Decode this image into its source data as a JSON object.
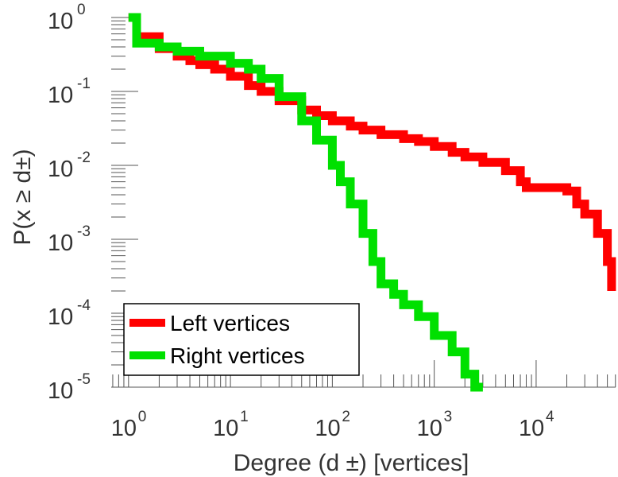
{
  "chart_data": {
    "type": "line",
    "title": "",
    "xlabel": "Degree (d ±) [vertices]",
    "ylabel": "P(x ≥ d±)",
    "x_scale": "log",
    "y_scale": "log",
    "xlim_exp": [
      -0.17,
      4.78
    ],
    "ylim_exp": [
      -5,
      0
    ],
    "grid": false,
    "legend_position": "bottom-left",
    "x_ticks": [
      {
        "base": "10",
        "exp": "0"
      },
      {
        "base": "10",
        "exp": "1"
      },
      {
        "base": "10",
        "exp": "2"
      },
      {
        "base": "10",
        "exp": "3"
      },
      {
        "base": "10",
        "exp": "4"
      }
    ],
    "y_ticks": [
      {
        "base": "10",
        "exp": "0"
      },
      {
        "base": "10",
        "exp": "-1"
      },
      {
        "base": "10",
        "exp": "-2"
      },
      {
        "base": "10",
        "exp": "-3"
      },
      {
        "base": "10",
        "exp": "-4"
      },
      {
        "base": "10",
        "exp": "-5"
      }
    ],
    "series": [
      {
        "name": "Left vertices",
        "color": "#ff0000",
        "x": [
          1,
          1.2,
          2,
          3,
          4,
          5,
          7,
          10,
          15,
          20,
          30,
          50,
          70,
          100,
          150,
          200,
          300,
          500,
          700,
          1000,
          1500,
          2000,
          3000,
          5000,
          7000,
          8000,
          10000,
          15000,
          20000,
          25000,
          30000,
          40000,
          50000,
          55000
        ],
        "y": [
          1,
          0.55,
          0.38,
          0.3,
          0.26,
          0.23,
          0.2,
          0.16,
          0.12,
          0.1,
          0.075,
          0.056,
          0.047,
          0.04,
          0.034,
          0.03,
          0.026,
          0.023,
          0.021,
          0.018,
          0.015,
          0.013,
          0.011,
          0.0085,
          0.006,
          0.005,
          0.005,
          0.005,
          0.0045,
          0.003,
          0.0022,
          0.0012,
          0.0005,
          0.0002
        ]
      },
      {
        "name": "Right vertices",
        "color": "#00e000",
        "x": [
          1,
          1.2,
          2,
          3,
          5,
          10,
          15,
          20,
          30,
          50,
          70,
          100,
          120,
          150,
          200,
          250,
          300,
          400,
          500,
          700,
          1000,
          1500,
          2000,
          2500,
          3000
        ],
        "y": [
          1,
          0.45,
          0.4,
          0.35,
          0.3,
          0.24,
          0.2,
          0.15,
          0.085,
          0.04,
          0.022,
          0.01,
          0.006,
          0.003,
          0.0012,
          0.0005,
          0.00025,
          0.00018,
          0.00013,
          9e-05,
          5e-05,
          3e-05,
          1.5e-05,
          1e-05,
          1e-05
        ]
      }
    ]
  }
}
